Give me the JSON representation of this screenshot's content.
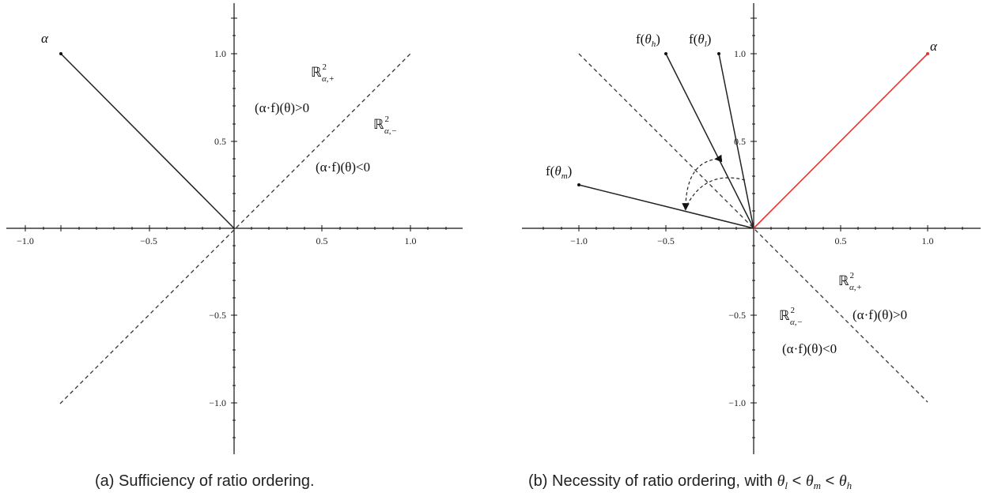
{
  "captions": {
    "a": "(a) Sufficiency of ratio ordering.",
    "b_prefix": "(b) Necessity of ratio ordering, with ",
    "b_theta": "θ",
    "b_l": "l",
    "b_lt": " < ",
    "b_m": "m",
    "b_h": "h"
  },
  "panel_a": {
    "ticks_x": [
      "−1.0",
      "−0.5",
      "0.5",
      "1.0"
    ],
    "ticks_y": [
      "1.0",
      "0.5",
      "−0.5",
      "−1.0"
    ],
    "alpha_label": "α",
    "region_plus": {
      "R": "ℝ",
      "sup": "2",
      "sub": "α,+"
    },
    "region_minus": {
      "R": "ℝ",
      "sup": "2",
      "sub": "α,−"
    },
    "ineq_pos": "(α·f)(θ)>0",
    "ineq_neg": "(α·f)(θ)<0"
  },
  "panel_b": {
    "ticks_x": [
      "−1.0",
      "−0.5",
      "0.5",
      "1.0"
    ],
    "ticks_y": [
      "1.0",
      "0.5",
      "−0.5",
      "−1.0"
    ],
    "alpha_label": "α",
    "f_h": {
      "f": "f(",
      "theta": "θ",
      "sub": "h",
      "close": ")"
    },
    "f_l": {
      "f": "f(",
      "theta": "θ",
      "sub": "l",
      "close": ")"
    },
    "f_m": {
      "f": "f(",
      "theta": "θ",
      "sub": "m",
      "close": ")"
    },
    "region_plus": {
      "R": "ℝ",
      "sup": "2",
      "sub": "α,+"
    },
    "region_minus": {
      "R": "ℝ",
      "sup": "2",
      "sub": "α,−"
    },
    "ineq_pos": "(α·f)(θ)>0",
    "ineq_neg": "(α·f)(θ)<0",
    "alpha_color": "#e8332e"
  }
}
